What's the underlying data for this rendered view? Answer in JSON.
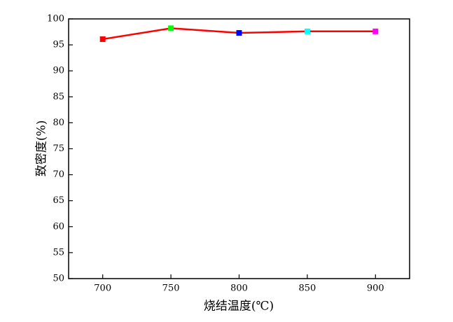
{
  "chart_data": {
    "type": "line",
    "x_label": "烧结温度(℃)",
    "y_label": "致密度(%)",
    "x": [
      700,
      750,
      800,
      850,
      900
    ],
    "series": [
      {
        "color": "#ff0000",
        "marker_colors": [
          "#ff0000",
          "#00ff00",
          "#0000ff",
          "#00ffff",
          "#ff00ff"
        ],
        "values": [
          96.1,
          98.2,
          97.3,
          97.6,
          97.6
        ]
      }
    ],
    "xlim": [
      675,
      925
    ],
    "xticks": [
      700,
      750,
      800,
      850,
      900
    ],
    "ylim": [
      50,
      100
    ],
    "yticks": [
      50,
      55,
      60,
      65,
      70,
      75,
      80,
      85,
      90,
      95,
      100
    ],
    "grid": false
  }
}
